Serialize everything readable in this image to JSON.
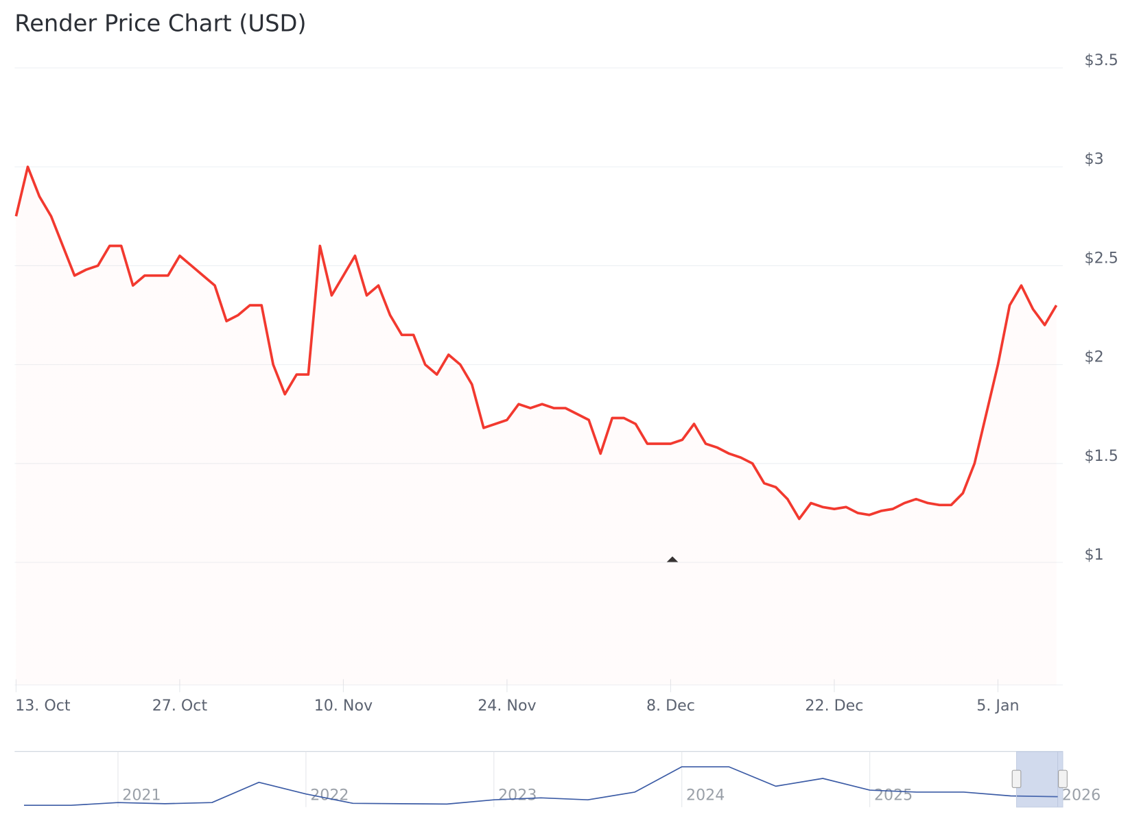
{
  "chart_data": [
    {
      "type": "line",
      "title": "Render Price Chart (USD)",
      "categories": [
        "13. Oct",
        null,
        null,
        null,
        null,
        null,
        null,
        null,
        null,
        null,
        null,
        null,
        null,
        null,
        "27. Oct",
        null,
        null,
        null,
        null,
        null,
        null,
        null,
        null,
        null,
        null,
        null,
        null,
        null,
        "10. Nov",
        null,
        null,
        null,
        null,
        null,
        null,
        null,
        null,
        null,
        null,
        null,
        null,
        null,
        "24. Nov",
        null,
        null,
        null,
        null,
        null,
        null,
        null,
        null,
        null,
        null,
        null,
        null,
        null,
        "8. Dec",
        null,
        null,
        null,
        null,
        null,
        null,
        null,
        null,
        null,
        null,
        null,
        null,
        null,
        "22. Dec",
        null,
        null,
        null,
        null,
        null,
        null,
        null,
        null,
        null,
        null,
        null,
        null,
        null,
        "5. Jan",
        null,
        null,
        null,
        null,
        null
      ],
      "series": [
        {
          "color": "#f2392f",
          "values": [
            2.75,
            3.0,
            2.85,
            2.75,
            2.6,
            2.45,
            2.48,
            2.5,
            2.6,
            2.6,
            2.4,
            2.45,
            2.45,
            2.45,
            2.55,
            2.5,
            2.45,
            2.4,
            2.22,
            2.25,
            2.3,
            2.3,
            2.0,
            1.85,
            1.95,
            1.95,
            2.6,
            2.35,
            2.45,
            2.55,
            2.35,
            2.4,
            2.25,
            2.15,
            2.15,
            2.0,
            1.95,
            2.05,
            2.0,
            1.9,
            1.68,
            1.7,
            1.72,
            1.8,
            1.78,
            1.8,
            1.78,
            1.78,
            1.75,
            1.72,
            1.55,
            1.73,
            1.73,
            1.7,
            1.6,
            1.6,
            1.6,
            1.62,
            1.7,
            1.6,
            1.58,
            1.55,
            1.53,
            1.5,
            1.4,
            1.38,
            1.32,
            1.22,
            1.3,
            1.28,
            1.27,
            1.28,
            1.25,
            1.24,
            1.26,
            1.27,
            1.3,
            1.32,
            1.3,
            1.29,
            1.29,
            1.35,
            1.5,
            1.75,
            2.0,
            2.3,
            2.4,
            2.28,
            2.2,
            2.3
          ]
        }
      ],
      "ylim": [
        0.38,
        3.5
      ],
      "yticks": [
        {
          "value": 1,
          "label": "$1"
        },
        {
          "value": 1.5,
          "label": "$1.5"
        },
        {
          "value": 2,
          "label": "$2"
        },
        {
          "value": 2.5,
          "label": "$2.5"
        },
        {
          "value": 3,
          "label": "$3"
        },
        {
          "value": 3.5,
          "label": "$3.5"
        }
      ],
      "grid": true
    },
    {
      "type": "line",
      "categories": [
        null,
        null,
        "2021",
        null,
        null,
        null,
        "2022",
        null,
        null,
        null,
        "2023",
        null,
        null,
        null,
        "2024",
        null,
        null,
        null,
        "2025",
        null,
        null,
        null,
        "2026"
      ],
      "series": [
        {
          "color": "#3b5ba5",
          "values": [
            0.1,
            0.1,
            0.8,
            0.5,
            0.8,
            6,
            3,
            0.6,
            0.5,
            0.4,
            1.5,
            2,
            1.5,
            3.5,
            10,
            10,
            5,
            7,
            4,
            3.5,
            3.5,
            2.5,
            2.3
          ]
        }
      ],
      "ylim": [
        0,
        13
      ]
    }
  ]
}
